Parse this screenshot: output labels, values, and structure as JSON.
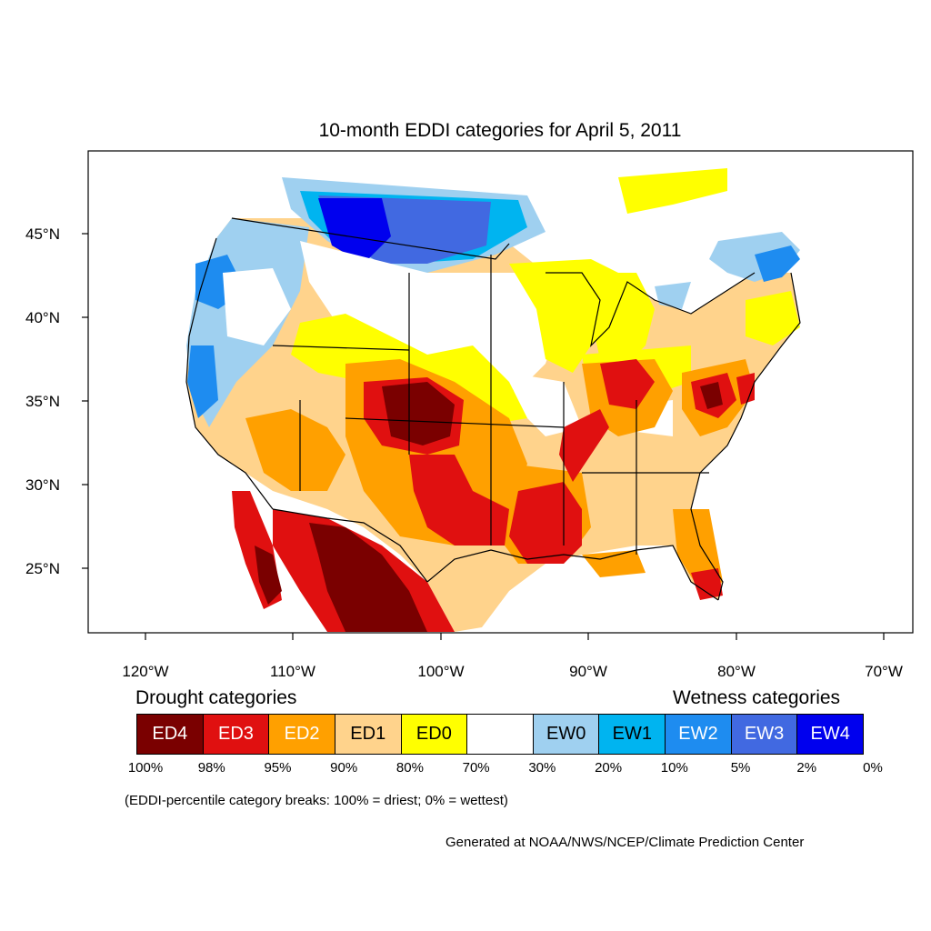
{
  "title": "10-month EDDI categories for April 5, 2011",
  "axes": {
    "lat_labels": [
      "45°N",
      "40°N",
      "35°N",
      "30°N",
      "25°N"
    ],
    "lon_labels": [
      "120°W",
      "110°W",
      "100°W",
      "90°W",
      "80°W",
      "70°W"
    ]
  },
  "legend": {
    "drought_header": "Drought categories",
    "wetness_header": "Wetness categories",
    "categories": [
      {
        "label": "ED4",
        "color": "#7a0000",
        "text_color": "#ffffff"
      },
      {
        "label": "ED3",
        "color": "#e01010",
        "text_color": "#ffffff"
      },
      {
        "label": "ED2",
        "color": "#ffa000",
        "text_color": "#ffffff"
      },
      {
        "label": "ED1",
        "color": "#ffd38c",
        "text_color": "#000000"
      },
      {
        "label": "ED0",
        "color": "#ffff00",
        "text_color": "#000000"
      },
      {
        "label": "",
        "color": "#ffffff",
        "text_color": "#000000"
      },
      {
        "label": "EW0",
        "color": "#9fd0f0",
        "text_color": "#000000"
      },
      {
        "label": "EW1",
        "color": "#00b4f0",
        "text_color": "#000000"
      },
      {
        "label": "EW2",
        "color": "#1e8cf0",
        "text_color": "#ffffff"
      },
      {
        "label": "EW3",
        "color": "#4169e1",
        "text_color": "#ffffff"
      },
      {
        "label": "EW4",
        "color": "#0000ee",
        "text_color": "#ffffff"
      }
    ],
    "percent_breaks": [
      "100%",
      "98%",
      "95%",
      "90%",
      "80%",
      "70%",
      "30%",
      "20%",
      "10%",
      "5%",
      "2%",
      "0%"
    ]
  },
  "note": "(EDDI-percentile category breaks: 100% = driest; 0% = wettest)",
  "credit": "Generated at NOAA/NWS/NCEP/Climate Prediction Center"
}
